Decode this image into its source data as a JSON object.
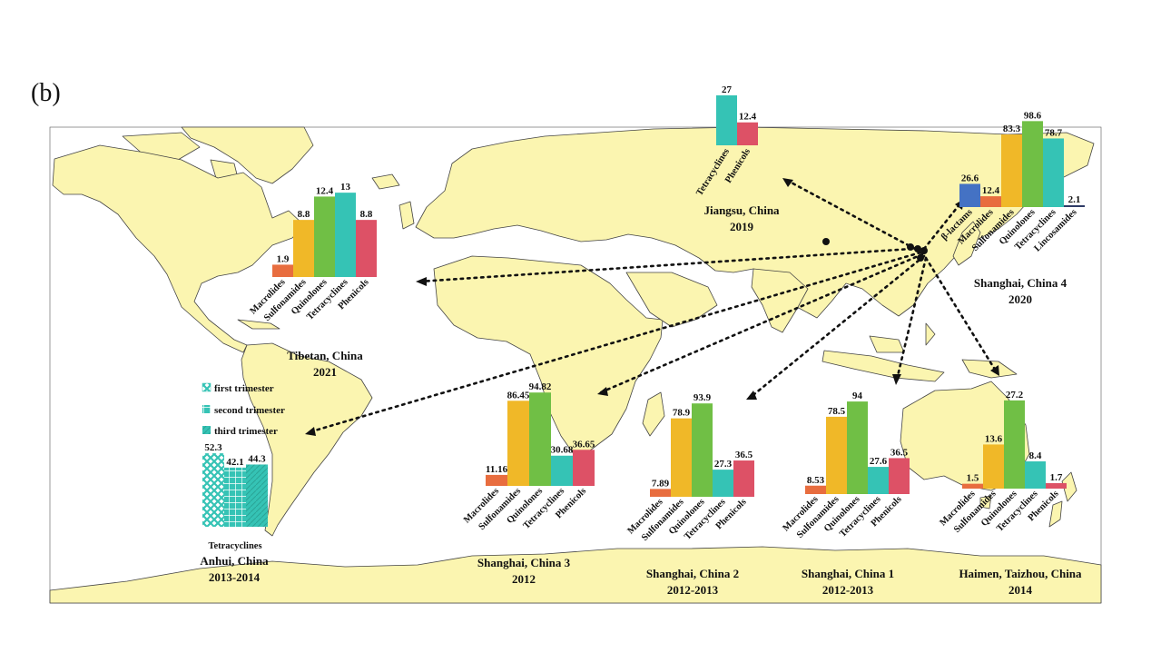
{
  "panel_label": "(b)",
  "colors": {
    "ocean": "#ffffff",
    "land": "#fbf5b0",
    "land_stroke": "#444444",
    "arrow": "#111111",
    "Macrolides": "#e86d3f",
    "Sulfonamides": "#f0b828",
    "Quinolones": "#70bf45",
    "Tetracyclines": "#35c3b5",
    "Phenicols": "#dd5166",
    "β-lactams": "#4472c4",
    "Lincosamides": "#2f3b66"
  },
  "legend": {
    "items": [
      "first trimester",
      "second trimester",
      "third trimester"
    ]
  },
  "chart_data": [
    {
      "type": "bar",
      "id": "tibetan",
      "location": "Tibetan, China",
      "year": "2021",
      "categories": [
        "Macrolides",
        "Sulfonamides",
        "Quinolones",
        "Tetracyclines",
        "Phenicols"
      ],
      "values": [
        1.9,
        8.8,
        12.4,
        13,
        8.8
      ],
      "labels": [
        "1.9",
        "8.8",
        "12.4",
        "13",
        "8.8"
      ],
      "ylim": [
        0,
        14
      ]
    },
    {
      "type": "bar",
      "id": "jiangsu",
      "location": "Jiangsu, China",
      "year": "2019",
      "categories": [
        "Tetracyclines",
        "Phenicols"
      ],
      "values": [
        27,
        12.4
      ],
      "labels": [
        "27",
        "12.4"
      ],
      "ylim": [
        0,
        27
      ]
    },
    {
      "type": "bar",
      "id": "shanghai4",
      "location": "Shanghai, China 4",
      "year": "2020",
      "categories": [
        "β-lactams",
        "Macrolides",
        "Sulfonamides",
        "Quinolones",
        "Tetracyclines",
        "Lincosamides"
      ],
      "values": [
        26.6,
        12.4,
        83.3,
        98.6,
        78.7,
        2.1
      ],
      "labels": [
        "26.6",
        "12.4",
        "83.3",
        "98.6",
        "78.7",
        "2.1"
      ],
      "ylim": [
        0,
        100
      ]
    },
    {
      "type": "bar",
      "id": "anhui",
      "location": "Anhui, China",
      "year": "2013-2014",
      "categories": [
        "Tetracyclines"
      ],
      "series": [
        {
          "name": "first trimester",
          "values": [
            52.3
          ],
          "labels": [
            "52.3"
          ]
        },
        {
          "name": "second trimester",
          "values": [
            42.1
          ],
          "labels": [
            "42.1"
          ]
        },
        {
          "name": "third trimester",
          "values": [
            44.3
          ],
          "labels": [
            "44.3"
          ]
        }
      ],
      "ylim": [
        0,
        53
      ]
    },
    {
      "type": "bar",
      "id": "shanghai3",
      "location": "Shanghai, China 3",
      "year": "2012",
      "categories": [
        "Macrolides",
        "Sulfonamides",
        "Quinolones",
        "Tetracyclines",
        "Phenicols"
      ],
      "values": [
        11.16,
        86.45,
        94.82,
        30.68,
        36.65
      ],
      "labels": [
        "11.16",
        "86.45",
        "94.82",
        "30.68",
        "36.65"
      ],
      "ylim": [
        0,
        95
      ]
    },
    {
      "type": "bar",
      "id": "shanghai2",
      "location": "Shanghai, China 2",
      "year": "2012-2013",
      "categories": [
        "Macrolides",
        "Sulfonamides",
        "Quinolones",
        "Tetracyclines",
        "Phenicols"
      ],
      "values": [
        7.89,
        78.9,
        93.9,
        27.3,
        36.5
      ],
      "labels": [
        "7.89",
        "78.9",
        "93.9",
        "27.3",
        "36.5"
      ],
      "ylim": [
        0,
        95
      ]
    },
    {
      "type": "bar",
      "id": "shanghai1",
      "location": "Shanghai, China 1",
      "year": "2012-2013",
      "categories": [
        "Macrolides",
        "Sulfonamides",
        "Quinolones",
        "Tetracyclines",
        "Phenicols"
      ],
      "values": [
        8.53,
        78.5,
        94,
        27.6,
        36.5
      ],
      "labels": [
        "8.53",
        "78.5",
        "94",
        "27.6",
        "36.5"
      ],
      "ylim": [
        0,
        95
      ]
    },
    {
      "type": "bar",
      "id": "haimen",
      "location": "Haimen, Taizhou, China",
      "year": "2014",
      "categories": [
        "Macrolides",
        "Sulfonamides",
        "Quinolones",
        "Tetracyclines",
        "Phenicols"
      ],
      "values": [
        1.5,
        13.6,
        27.2,
        8.4,
        1.7
      ],
      "labels": [
        "1.5",
        "13.6",
        "27.2",
        "8.4",
        "1.7"
      ],
      "ylim": [
        0,
        28
      ]
    }
  ]
}
